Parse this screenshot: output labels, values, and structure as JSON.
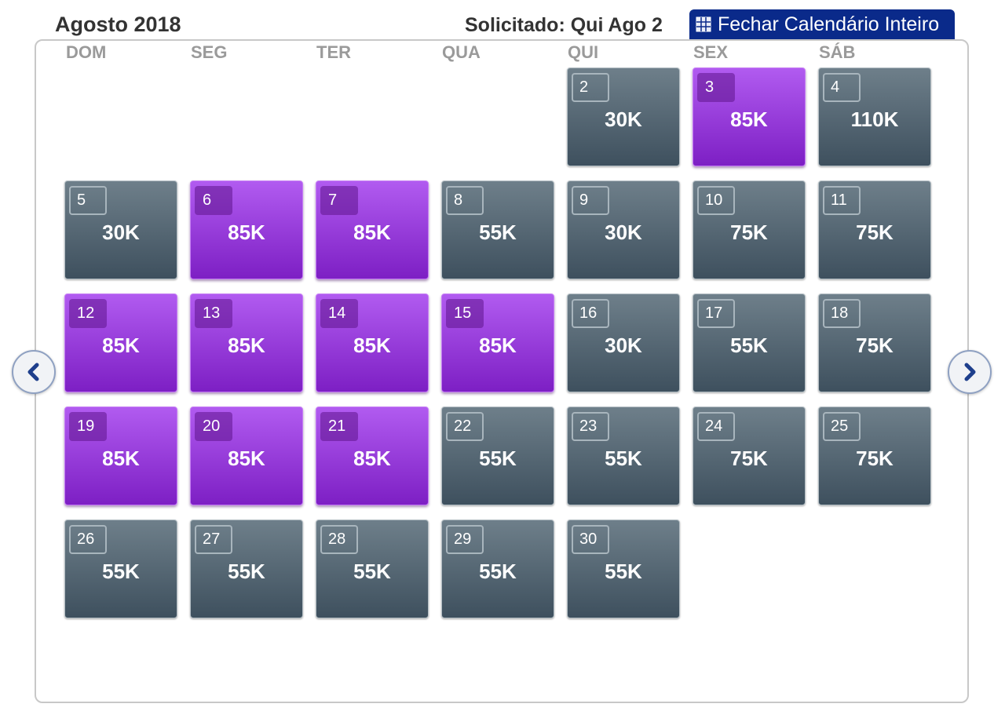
{
  "header": {
    "month": "Agosto 2018",
    "requested": "Solicitado: Qui Ago 2",
    "close_button": "Fechar Calendário Inteiro"
  },
  "weekdays": [
    "DOM",
    "SEG",
    "TER",
    "QUA",
    "QUI",
    "SEX",
    "SÁB"
  ],
  "calendar": {
    "leading_empty_days": 4,
    "days": [
      {
        "day": "2",
        "price": "30K",
        "highlight": false
      },
      {
        "day": "3",
        "price": "85K",
        "highlight": true
      },
      {
        "day": "4",
        "price": "110K",
        "highlight": false
      },
      {
        "day": "5",
        "price": "30K",
        "highlight": false
      },
      {
        "day": "6",
        "price": "85K",
        "highlight": true
      },
      {
        "day": "7",
        "price": "85K",
        "highlight": true
      },
      {
        "day": "8",
        "price": "55K",
        "highlight": false
      },
      {
        "day": "9",
        "price": "30K",
        "highlight": false
      },
      {
        "day": "10",
        "price": "75K",
        "highlight": false
      },
      {
        "day": "11",
        "price": "75K",
        "highlight": false
      },
      {
        "day": "12",
        "price": "85K",
        "highlight": true
      },
      {
        "day": "13",
        "price": "85K",
        "highlight": true
      },
      {
        "day": "14",
        "price": "85K",
        "highlight": true
      },
      {
        "day": "15",
        "price": "85K",
        "highlight": true
      },
      {
        "day": "16",
        "price": "30K",
        "highlight": false
      },
      {
        "day": "17",
        "price": "55K",
        "highlight": false
      },
      {
        "day": "18",
        "price": "75K",
        "highlight": false
      },
      {
        "day": "19",
        "price": "85K",
        "highlight": true
      },
      {
        "day": "20",
        "price": "85K",
        "highlight": true
      },
      {
        "day": "21",
        "price": "85K",
        "highlight": true
      },
      {
        "day": "22",
        "price": "55K",
        "highlight": false
      },
      {
        "day": "23",
        "price": "55K",
        "highlight": false
      },
      {
        "day": "24",
        "price": "75K",
        "highlight": false
      },
      {
        "day": "25",
        "price": "75K",
        "highlight": false
      },
      {
        "day": "26",
        "price": "55K",
        "highlight": false
      },
      {
        "day": "27",
        "price": "55K",
        "highlight": false
      },
      {
        "day": "28",
        "price": "55K",
        "highlight": false
      },
      {
        "day": "29",
        "price": "55K",
        "highlight": false
      },
      {
        "day": "30",
        "price": "55K",
        "highlight": false
      }
    ]
  },
  "colors": {
    "highlight_tile": "#9b3fe0",
    "normal_tile": "#53636f",
    "close_button_bg": "#0a2a8a",
    "nav_arrow": "#1e3f8c"
  },
  "icons": {
    "close_button": "grid-icon",
    "prev": "chevron-left-icon",
    "next": "chevron-right-icon"
  }
}
